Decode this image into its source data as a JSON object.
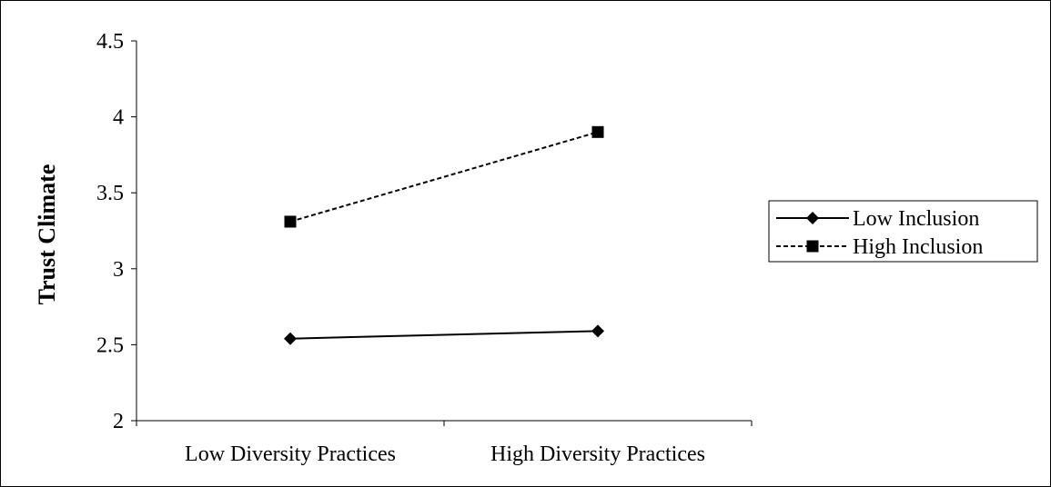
{
  "chart_data": {
    "type": "line",
    "title": "",
    "xlabel": "",
    "ylabel": "Trust Climate",
    "categories": [
      "Low Diversity Practices",
      "High Diversity Practices"
    ],
    "ylim": [
      2,
      4.5
    ],
    "yticks": [
      2,
      2.5,
      3,
      3.5,
      4,
      4.5
    ],
    "ytick_labels": [
      "2",
      "2.5",
      "3",
      "3.5",
      "4",
      "4.5"
    ],
    "grid": false,
    "legend_position": "right",
    "series": [
      {
        "name": "Low Inclusion",
        "values": [
          2.54,
          2.59
        ],
        "line_style": "solid",
        "marker": "diamond",
        "color": "#000000"
      },
      {
        "name": "High Inclusion",
        "values": [
          3.31,
          3.9
        ],
        "line_style": "dashed",
        "marker": "square",
        "color": "#000000"
      }
    ]
  }
}
